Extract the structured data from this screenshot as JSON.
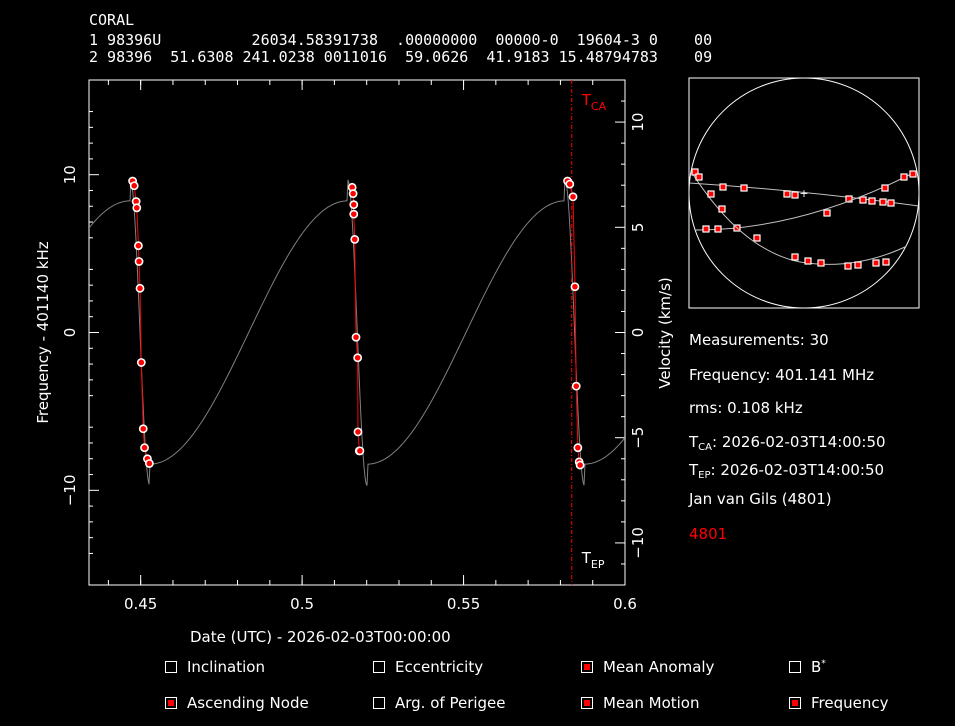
{
  "tle": {
    "name": "CORAL",
    "line1": "1 98396U          26034.58391738  .00000000  00000-0  19604-3 0    00",
    "line2": "2 98396  51.6308 241.0238 0011016  59.0626  41.9183 15.48794783    09"
  },
  "info": {
    "measurements": "Measurements: 30",
    "frequency": "Frequency: 401.141 MHz",
    "rms": "rms: 0.108 kHz",
    "tca_prefix": "T",
    "tca_sub": "CA",
    "tca_value": ": 2026-02-03T14:00:50",
    "tep_prefix": "T",
    "tep_sub": "EP",
    "tep_value": ": 2026-02-03T14:00:50",
    "observer": "Jan van Gils (4801)",
    "site_id": "4801"
  },
  "options": [
    {
      "label": "Inclination",
      "checked": false
    },
    {
      "label": "Eccentricity",
      "checked": false
    },
    {
      "label": "Mean Anomaly",
      "checked": true
    },
    {
      "label": "B",
      "sup": "*",
      "checked": false
    },
    {
      "label": "Ascending Node",
      "checked": true
    },
    {
      "label": "Arg. of Perigee",
      "checked": false
    },
    {
      "label": "Mean Motion",
      "checked": true
    },
    {
      "label": "Frequency",
      "checked": true
    }
  ],
  "colors": {
    "background": "#000000",
    "axis": "#ffffff",
    "fit": "#ff0000",
    "model": "#808080",
    "marker_edge": "#ffffff",
    "marker_fill": "#ff0000",
    "highlight": "#ff0000"
  },
  "chart_data": {
    "type": "scatter",
    "xlabel": "Date (UTC) - 2026-02-03T00:00:00",
    "ylabel": "Frequency - 401140 kHz",
    "y2label": "Velocity (km/s)",
    "xlim": [
      0.434,
      0.6
    ],
    "ylim": [
      -16,
      16
    ],
    "y2lim": [
      -12,
      12
    ],
    "xticks": [
      "0.45",
      "0.5",
      "0.55",
      "0.6"
    ],
    "yticks": [
      "10",
      "0",
      "−10"
    ],
    "y2ticks": [
      "10",
      "5",
      "0",
      "−5",
      "−10"
    ],
    "tca": {
      "x": 0.5835,
      "label_main": "T",
      "label_sub": "CA"
    },
    "tep": {
      "x": 0.5835,
      "label_main": "T",
      "label_sub": "EP"
    },
    "series": [
      {
        "x": [
          0.4475,
          0.448,
          0.4486,
          0.4488,
          0.4493,
          0.4495,
          0.4498,
          0.4502,
          0.4508,
          0.4512,
          0.4521,
          0.4527,
          0.5155,
          0.5158,
          0.516,
          0.516,
          0.5163,
          0.5167,
          0.5172,
          0.5173,
          0.5177,
          0.5179,
          0.5822,
          0.5829,
          0.5839,
          0.5845,
          0.5849,
          0.5854,
          0.5858,
          0.5861
        ],
        "y": [
          9.6,
          9.3,
          8.3,
          7.9,
          5.5,
          4.5,
          2.8,
          -1.9,
          -6.1,
          -7.3,
          -8.0,
          -8.3,
          9.2,
          8.8,
          8.1,
          7.5,
          5.9,
          -0.3,
          -1.6,
          -6.3,
          -7.5,
          -7.5,
          9.6,
          9.4,
          8.6,
          2.9,
          -3.4,
          -7.3,
          -8.2,
          -8.4
        ]
      }
    ]
  },
  "polar_data": {
    "tracks": 3
  }
}
